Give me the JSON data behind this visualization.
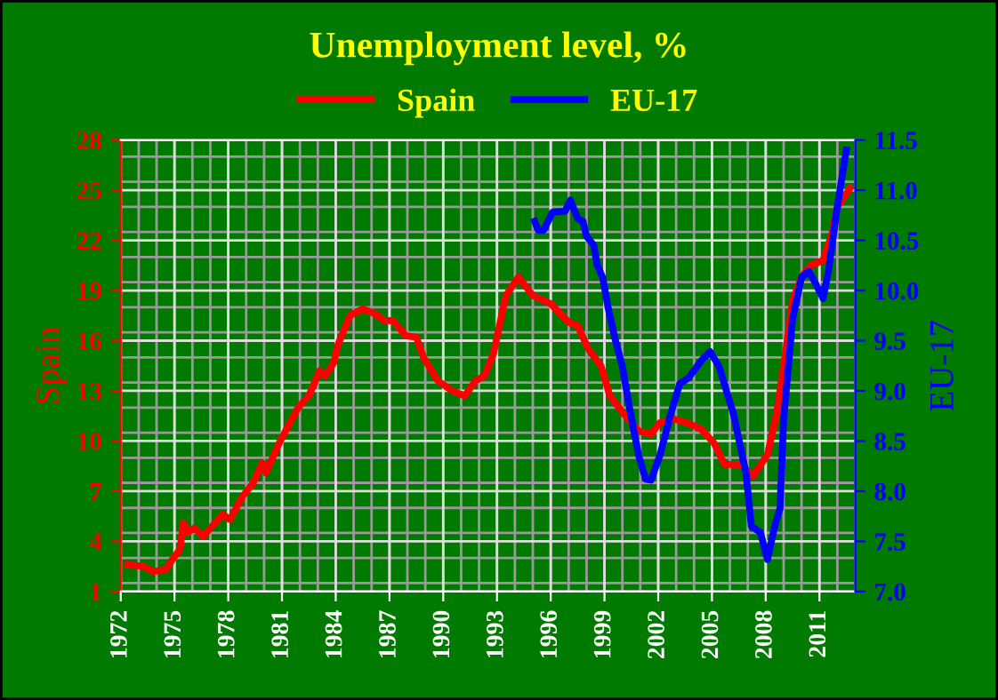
{
  "chart_data": {
    "type": "line",
    "title": "Unemployment level, %",
    "ylabel": "Spain",
    "y2label": "EU-17",
    "xlim": [
      1972,
      2013
    ],
    "xticks": [
      1972,
      1975,
      1978,
      1981,
      1984,
      1987,
      1990,
      1993,
      1996,
      1999,
      2002,
      2005,
      2008,
      2011
    ],
    "ylim": [
      1,
      28
    ],
    "yticks": [
      1,
      4,
      7,
      10,
      13,
      16,
      19,
      22,
      25,
      28
    ],
    "y2lim": [
      7,
      11.5
    ],
    "y2ticks": [
      {
        "value": 7,
        "label": "7.0"
      },
      {
        "value": 7.5,
        "label": "7.5"
      },
      {
        "value": 8,
        "label": "8.0"
      },
      {
        "value": 8.5,
        "label": "8.5"
      },
      {
        "value": 9,
        "label": "9.0"
      },
      {
        "value": 9.5,
        "label": "9.5"
      },
      {
        "value": 10,
        "label": "10.0"
      },
      {
        "value": 10.5,
        "label": "10.5"
      },
      {
        "value": 11,
        "label": "11.0"
      },
      {
        "value": 11.5,
        "label": "11.5"
      }
    ],
    "grid": true,
    "legend": "top",
    "marker": "none",
    "line_style": "solid",
    "series": [
      {
        "name": "Spain",
        "color": "#ff0000",
        "x": [
          1972.4,
          1973.3,
          1973.8,
          1974.5,
          1975.0,
          1975.3,
          1975.5,
          1975.7,
          1976.1,
          1976.6,
          1977.1,
          1977.7,
          1978.1,
          1978.8,
          1979.4,
          1979.9,
          1980.1,
          1980.9,
          1981.9,
          1982.5,
          1983.1,
          1983.4,
          1983.9,
          1984.1,
          1984.8,
          1985.5,
          1986.2,
          1986.7,
          1987.2,
          1987.9,
          1988.5,
          1988.9,
          1989.7,
          1990.5,
          1991.2,
          1991.8,
          1992.3,
          1992.8,
          1993.5,
          1994.2,
          1995.0,
          1996.0,
          1997.0,
          1997.5,
          1998.1,
          1998.8,
          1999.3,
          2000.1,
          2000.9,
          2001.6,
          2002.1,
          2002.9,
          2003.6,
          2004.4,
          2005.1,
          2005.7,
          2006.6,
          2007.3,
          2008.1,
          2008.6,
          2009.1,
          2009.5,
          2010.0,
          2010.5,
          2011.2,
          2011.7,
          2012.0,
          2012.7
        ],
        "values": [
          2.6,
          2.5,
          2.2,
          2.3,
          3.1,
          3.5,
          5.1,
          4.5,
          4.8,
          4.3,
          4.9,
          5.6,
          5.3,
          6.7,
          7.5,
          8.7,
          8.1,
          10.0,
          12.0,
          12.7,
          14.2,
          13.9,
          14.7,
          15.7,
          17.5,
          17.9,
          17.6,
          17.2,
          17.2,
          16.3,
          16.2,
          15.0,
          13.6,
          13.0,
          12.7,
          13.6,
          13.9,
          15.2,
          18.7,
          19.8,
          18.7,
          18.2,
          17.1,
          16.9,
          15.5,
          14.5,
          12.7,
          11.6,
          10.6,
          10.4,
          11.1,
          11.3,
          11.1,
          10.7,
          9.9,
          8.6,
          8.6,
          7.9,
          9.2,
          11.6,
          15.2,
          18.4,
          19.8,
          20.5,
          20.8,
          22.4,
          24.0,
          25.1
        ]
      },
      {
        "name": "EU-17",
        "color": "#0000ff",
        "axis": "y2",
        "x": [
          1995.1,
          1995.3,
          1995.6,
          1996.1,
          1996.8,
          1997.1,
          1997.5,
          1997.8,
          1998.0,
          1998.4,
          1998.6,
          1998.9,
          1999.2,
          1999.6,
          2000.0,
          2000.4,
          2000.9,
          2001.3,
          2001.6,
          2002.1,
          2002.7,
          2003.2,
          2003.7,
          2004.4,
          2004.9,
          2005.4,
          2006.2,
          2006.9,
          2007.2,
          2007.7,
          2008.1,
          2008.5,
          2008.8,
          2009.0,
          2009.5,
          2010.0,
          2010.4,
          2010.7,
          2011.2,
          2011.5,
          2012.0,
          2012.5
        ],
        "values": [
          10.69,
          10.6,
          10.6,
          10.78,
          10.79,
          10.9,
          10.72,
          10.69,
          10.54,
          10.45,
          10.25,
          10.13,
          9.83,
          9.51,
          9.24,
          8.83,
          8.36,
          8.12,
          8.11,
          8.36,
          8.77,
          9.07,
          9.13,
          9.3,
          9.39,
          9.24,
          8.77,
          8.18,
          7.65,
          7.59,
          7.32,
          7.65,
          7.83,
          8.71,
          9.72,
          10.13,
          10.19,
          10.1,
          9.92,
          10.19,
          10.84,
          11.4
        ]
      }
    ]
  }
}
